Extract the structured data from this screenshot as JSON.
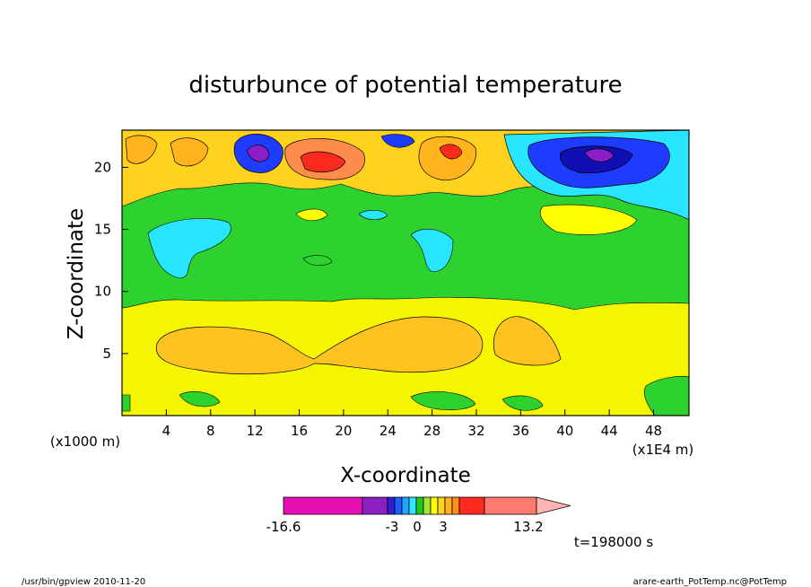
{
  "chart_data": {
    "type": "heatmap",
    "title": "disturbunce of potential temperature",
    "xlabel": "X-coordinate",
    "ylabel": "Z-coordinate",
    "x_unit_left": "(x1000 m)",
    "x_unit_right": "(x1E4 m)",
    "x_ticks": [
      "4",
      "8",
      "12",
      "16",
      "20",
      "24",
      "28",
      "32",
      "36",
      "40",
      "44",
      "48"
    ],
    "x_tick_values": [
      4,
      8,
      12,
      16,
      20,
      24,
      28,
      32,
      36,
      40,
      44,
      48
    ],
    "y_ticks": [
      "5",
      "10",
      "15",
      "20"
    ],
    "y_tick_values": [
      5,
      10,
      15,
      20
    ],
    "xlim": [
      0,
      51.2
    ],
    "ylim": [
      0,
      23
    ],
    "time_label": "t=198000 s",
    "colorbar": {
      "labels": [
        "-16.6",
        "-3",
        "0",
        "3",
        "13.2"
      ],
      "label_values": [
        -16.6,
        -3,
        0,
        3,
        13.2
      ],
      "colors": [
        "#e60fb4",
        "#8b1fc0",
        "#2c1fd6",
        "#1f5dff",
        "#1fa7ff",
        "#2ee6ff",
        "#1ec81e",
        "#a0e632",
        "#ffff00",
        "#ffd21e",
        "#ffb41e",
        "#ff8c1e",
        "#ff2a1e",
        "#ff7a6e",
        "#ffb4b4"
      ]
    },
    "palette": {
      "bg": "#f5f500",
      "band_orange": "#ffc21e",
      "green": "#2ed22e",
      "cyan": "#28e6ff",
      "blue": "#1e3cff",
      "navy": "#0f0fb4",
      "purple": "#8c1ec8",
      "red": "#ff2a1e",
      "lightred": "#ff8c4a"
    }
  },
  "footer": {
    "left": "/usr/bin/gpview   2010-11-20",
    "right": "arare-earth_PotTemp.nc@PotTemp"
  }
}
